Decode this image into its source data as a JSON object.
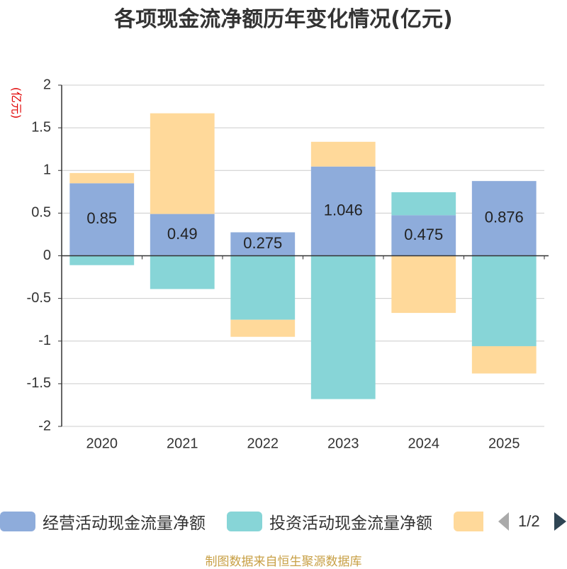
{
  "chart_data": {
    "type": "bar",
    "stacked": true,
    "title": "各项现金流净额历年变化情况(亿元)",
    "xlabel": "",
    "ylabel": "(亿元)",
    "categories": [
      "2020",
      "2021",
      "2022",
      "2023",
      "2024",
      "2025"
    ],
    "ylim": [
      -2,
      2
    ],
    "y_ticks": [
      2,
      1.5,
      1,
      0.5,
      0,
      -0.5,
      -1,
      -1.5,
      -2
    ],
    "grid": true,
    "legend_position": "bottom",
    "series": [
      {
        "name": "经营活动现金流量净额",
        "color": "#8eacdb",
        "show_labels": true,
        "values": [
          0.85,
          0.49,
          0.275,
          1.046,
          0.475,
          0.876
        ]
      },
      {
        "name": "投资活动现金流量净额",
        "color": "#87d5d7",
        "show_labels": false,
        "values": [
          -0.11,
          -0.39,
          -0.75,
          -1.68,
          0.27,
          -1.06
        ]
      },
      {
        "name": "",
        "color": "#ffd99a",
        "show_labels": false,
        "values": [
          0.12,
          1.18,
          -0.2,
          0.29,
          -0.67,
          -0.32
        ]
      }
    ]
  },
  "legend": {
    "page": "1/2",
    "prev_color": "#aaaaaa",
    "next_color": "#2f4554"
  },
  "footer": "制图数据来自恒生聚源数据库",
  "colors": {
    "axis": "#333333",
    "grid": "#cccccc",
    "unit_label": "#e00000"
  }
}
